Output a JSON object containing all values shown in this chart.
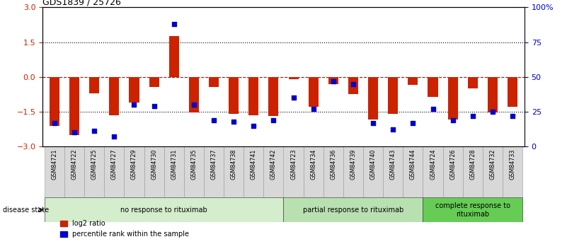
{
  "title": "GDS1839 / 25726",
  "samples": [
    "GSM84721",
    "GSM84722",
    "GSM84725",
    "GSM84727",
    "GSM84729",
    "GSM84730",
    "GSM84731",
    "GSM84735",
    "GSM84737",
    "GSM84738",
    "GSM84741",
    "GSM84742",
    "GSM84723",
    "GSM84734",
    "GSM84736",
    "GSM84739",
    "GSM84740",
    "GSM84743",
    "GSM84744",
    "GSM84724",
    "GSM84726",
    "GSM84728",
    "GSM84732",
    "GSM84733"
  ],
  "log2_ratio": [
    -2.1,
    -2.5,
    -0.7,
    -1.65,
    -1.1,
    -0.45,
    1.75,
    -1.55,
    -0.45,
    -1.6,
    -1.65,
    -1.7,
    -0.1,
    -1.3,
    -0.3,
    -0.75,
    -1.85,
    -1.6,
    -0.35,
    -0.85,
    -1.85,
    -0.5,
    -1.55,
    -1.3
  ],
  "percentile": [
    17,
    10,
    11,
    7,
    30,
    29,
    88,
    30,
    19,
    18,
    15,
    19,
    35,
    27,
    47,
    45,
    17,
    12,
    17,
    27,
    19,
    22,
    25,
    22
  ],
  "groups": [
    {
      "label": "no response to rituximab",
      "start": 0,
      "end": 12,
      "color": "#d4edcc"
    },
    {
      "label": "partial response to rituximab",
      "start": 12,
      "end": 19,
      "color": "#b8e0b0"
    },
    {
      "label": "complete response to\nrituximab",
      "start": 19,
      "end": 24,
      "color": "#66cc55"
    }
  ],
  "bar_color": "#cc2200",
  "dot_color": "#0000cc",
  "ylim": [
    -3,
    3
  ],
  "y2lim": [
    0,
    100
  ],
  "yticks": [
    -3,
    -1.5,
    0,
    1.5,
    3
  ],
  "y2ticks": [
    0,
    25,
    50,
    75,
    100
  ],
  "hline_color_zero": "#cc0000",
  "hline_color_dotted": "#000000",
  "disease_state_label": "disease state",
  "legend_entries": [
    "log2 ratio",
    "percentile rank within the sample"
  ]
}
